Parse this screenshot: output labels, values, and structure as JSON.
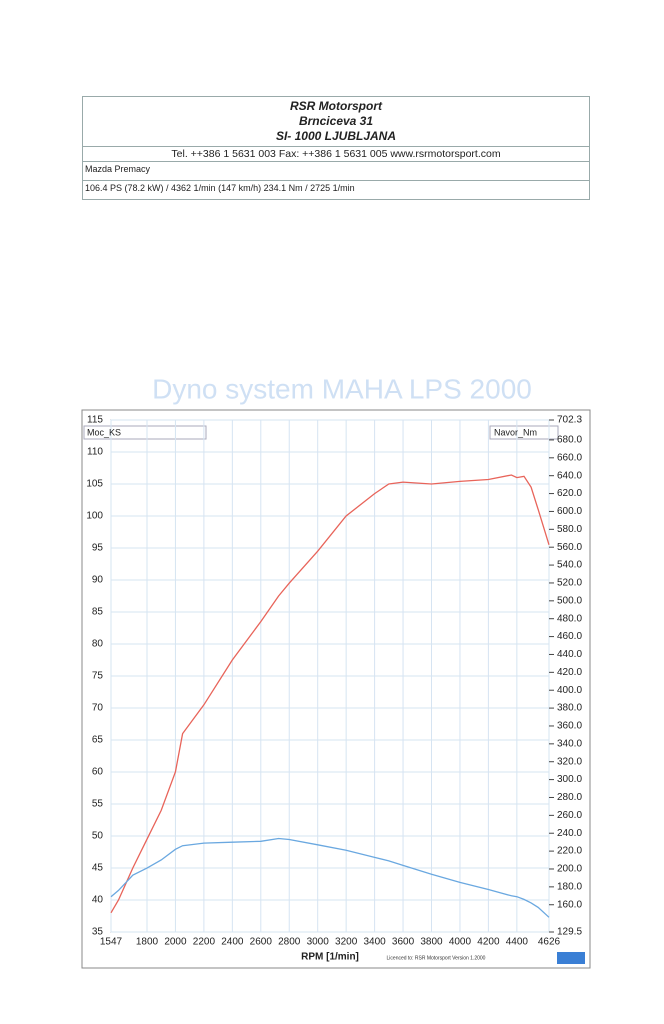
{
  "header": {
    "company": "RSR Motorsport",
    "address": "Brnciceva 31",
    "city": "SI- 1000 LJUBLJANA",
    "contact": "Tel. ++386 1 5631 003 Fax: ++386 1 5631 005 www.rsrmotorsport.com",
    "vehicle": "Mazda Premacy",
    "summary": "106.4 PS  (78.2 kW) / 4362 1/min (147 km/h)   234.1 Nm / 2725 1/min"
  },
  "chart_data": {
    "type": "line",
    "title": "Dyno system MAHA LPS 2000",
    "x_label": "RPM  [1/min]",
    "footnote": "Licenced to: RSR Motorsport  Version 1.2000",
    "x": [
      1547,
      1600,
      1700,
      1800,
      1900,
      2000,
      2050,
      2200,
      2400,
      2600,
      2725,
      2800,
      3000,
      3200,
      3400,
      3500,
      3600,
      3800,
      4000,
      4200,
      4362,
      4400,
      4450,
      4500,
      4550,
      4626
    ],
    "series": [
      {
        "name": "Moc_KS",
        "color": "#e8645a",
        "values": [
          38,
          40,
          45,
          49.5,
          54,
          60,
          66,
          70.5,
          77.5,
          83.5,
          87.5,
          89.5,
          94.5,
          100,
          103.5,
          105,
          105.3,
          105,
          105.4,
          105.7,
          106.4,
          106,
          106.2,
          104.5,
          101,
          95.5
        ]
      },
      {
        "name": "Navor_Nm",
        "color": "#6aa8e0",
        "axis": "y2",
        "values": [
          169,
          176,
          193,
          201,
          210,
          222,
          226,
          229,
          230,
          231,
          234.1,
          233,
          227,
          221,
          213,
          209,
          204,
          194,
          185,
          177,
          170,
          169,
          166,
          162,
          157,
          146
        ]
      }
    ],
    "xlim": [
      1547,
      4626
    ],
    "xticks": [
      1547,
      1800,
      2000,
      2200,
      2400,
      2600,
      2800,
      3000,
      3200,
      3400,
      3600,
      3800,
      4000,
      4200,
      4400,
      4626
    ],
    "ylim": [
      35,
      115
    ],
    "yticks": [
      35,
      40,
      45,
      50,
      55,
      60,
      65,
      70,
      75,
      80,
      85,
      90,
      95,
      100,
      105,
      110,
      115
    ],
    "y2lim": [
      129.5,
      702.3
    ],
    "y2ticks": [
      129.5,
      {
        "value": 160,
        "label": "160.0"
      },
      {
        "value": 180,
        "label": "180.0"
      },
      {
        "value": 200,
        "label": "200.0"
      },
      {
        "value": 220,
        "label": "220.0"
      },
      {
        "value": 240,
        "label": "240.0"
      },
      {
        "value": 260,
        "label": "260.0"
      },
      {
        "value": 280,
        "label": "280.0"
      },
      {
        "value": 300,
        "label": "300.0"
      },
      {
        "value": 320,
        "label": "320.0"
      },
      {
        "value": 340,
        "label": "340.0"
      },
      {
        "value": 360,
        "label": "360.0"
      },
      {
        "value": 380,
        "label": "380.0"
      },
      {
        "value": 400,
        "label": "400.0"
      },
      {
        "value": 420,
        "label": "420.0"
      },
      {
        "value": 440,
        "label": "440.0"
      },
      {
        "value": 460,
        "label": "460.0"
      },
      {
        "value": 480,
        "label": "480.0"
      },
      {
        "value": 500,
        "label": "500.0"
      },
      {
        "value": 520,
        "label": "520.0"
      },
      {
        "value": 540,
        "label": "540.0"
      },
      {
        "value": 560,
        "label": "560.0"
      },
      {
        "value": 580,
        "label": "580.0"
      },
      {
        "value": 600,
        "label": "600.0"
      },
      {
        "value": 620,
        "label": "620.0"
      },
      {
        "value": 640,
        "label": "640.0"
      },
      {
        "value": 660,
        "label": "660.0"
      },
      {
        "value": 680,
        "label": "680.0"
      },
      702.3
    ],
    "grid": true
  }
}
